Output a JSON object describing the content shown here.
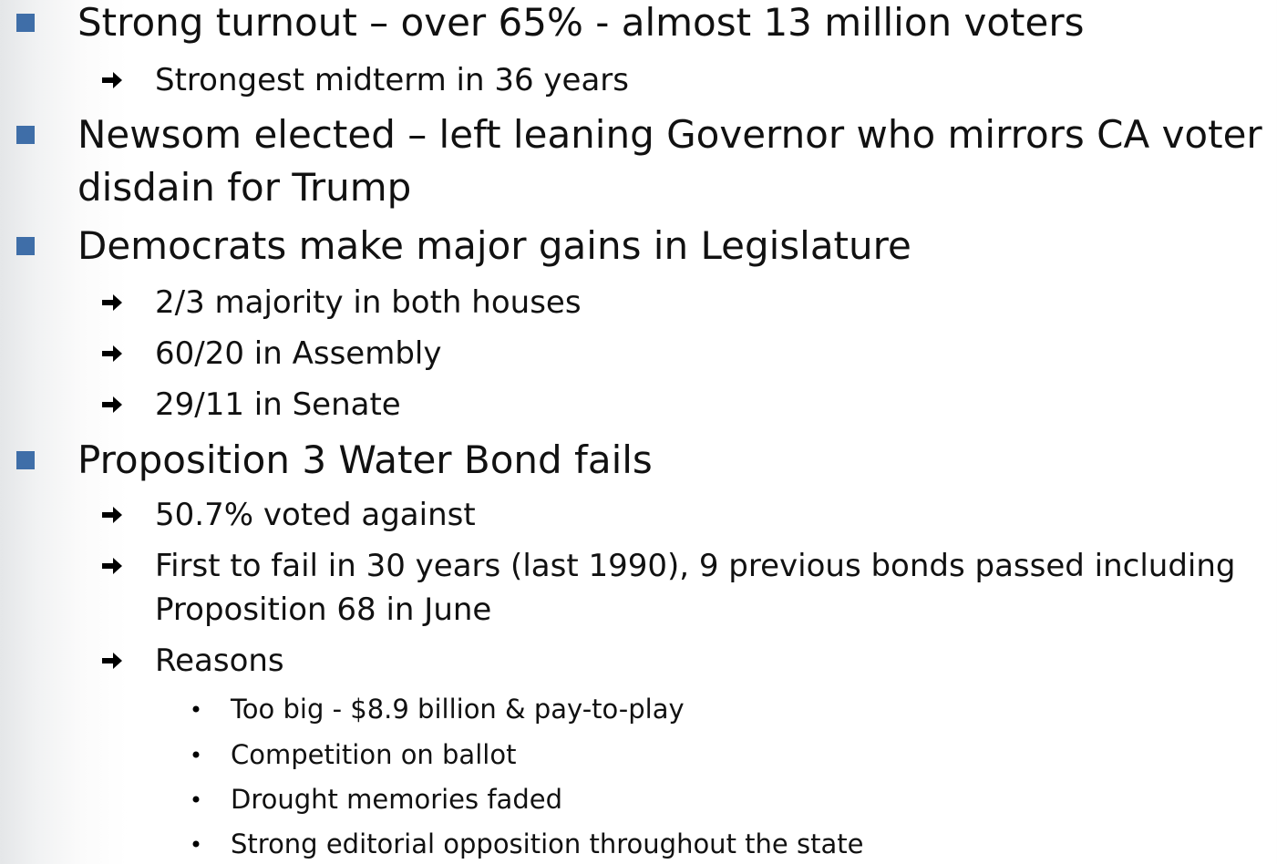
{
  "items": [
    {
      "text": "Strong turnout – over 65% - almost 13 million voters",
      "sub": [
        {
          "text": "Strongest midterm in 36 years"
        }
      ]
    },
    {
      "text": "Newsom elected – left leaning Governor who mirrors CA voter disdain for Trump"
    },
    {
      "text": "Democrats make major gains in Legislature",
      "sub": [
        {
          "text": "2/3 majority in both houses"
        },
        {
          "text": "60/20 in Assembly"
        },
        {
          "text": "29/11 in Senate"
        }
      ]
    },
    {
      "text": "Proposition 3 Water Bond fails",
      "sub": [
        {
          "text": "50.7% voted against"
        },
        {
          "text": "First to fail in 30 years (last 1990), 9 previous bonds passed including Proposition 68 in June"
        },
        {
          "text": "Reasons",
          "sub": [
            {
              "text": "Too big - $8.9 billion & pay-to-play"
            },
            {
              "text": "Competition on ballot"
            },
            {
              "text": "Drought memories faded"
            },
            {
              "text": "Strong editorial opposition throughout the state"
            }
          ]
        }
      ]
    }
  ]
}
